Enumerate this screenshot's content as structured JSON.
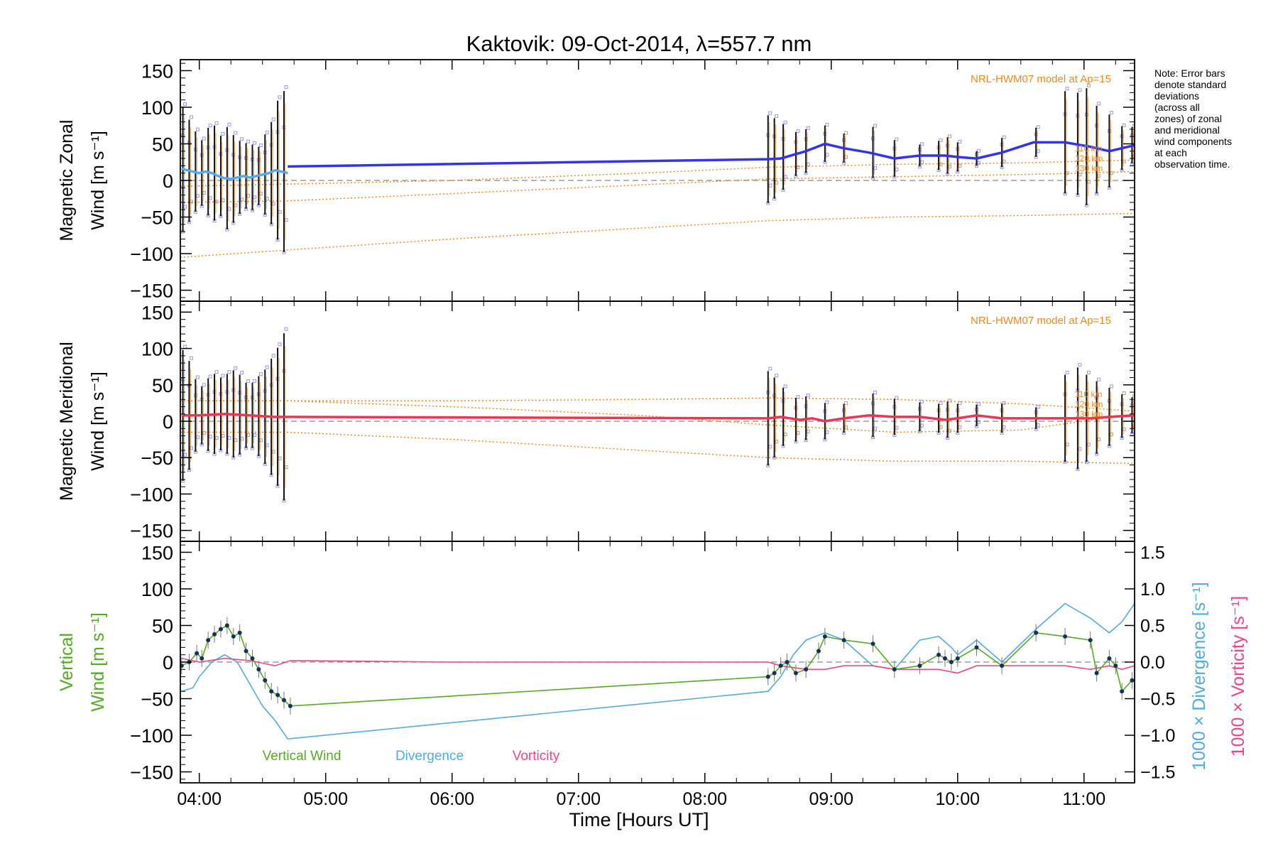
{
  "chart_data": {
    "title": "Kaktovik: 09-Oct-2014, λ=557.7 nm",
    "type": "line",
    "xlabel": "Time [Hours UT]",
    "xlim": [
      3.85,
      11.4
    ],
    "x_ticks": [
      {
        "value": 4,
        "label": "04:00"
      },
      {
        "value": 5,
        "label": "05:00"
      },
      {
        "value": 6,
        "label": "06:00"
      },
      {
        "value": 7,
        "label": "07:00"
      },
      {
        "value": 8,
        "label": "08:00"
      },
      {
        "value": 9,
        "label": "09:00"
      },
      {
        "value": 10,
        "label": "10:00"
      },
      {
        "value": 11,
        "label": "11:00"
      }
    ],
    "note": "Note: Error bars denote standard deviations (across all zones) of zonal and meridional wind components at each observation time.",
    "colors": {
      "zonal": "#3333ee",
      "zonal_light": "#55aaee",
      "meridional": "#ee3355",
      "vertical": "#55aa22",
      "divergence": "#55aadd",
      "vorticity": "#ee4488",
      "model": "#ee8822",
      "zone_points": "#9999dd"
    },
    "panels": [
      {
        "name": "zonal",
        "ylabel_line1": "Magnetic Zonal",
        "ylabel_line2": "Wind [m s⁻¹]",
        "ylim": [
          -165,
          165
        ],
        "yticks": [
          -150,
          -100,
          -50,
          0,
          50,
          100,
          150
        ],
        "model_label": "NRL-HWM07 model at Ap=15",
        "model_alt_labels": [
          "110 km",
          "120 km",
          "130 km"
        ],
        "series": [
          {
            "x": [
              3.86,
              3.9,
              3.95,
              4.0,
              4.05,
              4.1,
              4.15,
              4.2,
              4.25,
              4.3,
              4.35,
              4.4,
              4.45,
              4.5,
              4.55,
              4.6,
              4.65,
              4.7
            ],
            "y": [
              16,
              14,
              12,
              10,
              12,
              10,
              6,
              3,
              2,
              4,
              6,
              4,
              6,
              8,
              10,
              14,
              12,
              10
            ],
            "style": "light"
          },
          {
            "x": [
              4.7,
              8.5,
              8.6,
              8.8,
              8.95,
              9.1,
              9.3,
              9.5,
              9.7,
              9.9,
              10.0,
              10.15,
              10.35,
              10.6,
              10.85,
              11.05,
              11.2,
              11.4
            ],
            "y": [
              19,
              29,
              30,
              40,
              50,
              44,
              38,
              30,
              34,
              34,
              32,
              30,
              38,
              52,
              52,
              46,
              40,
              48
            ],
            "style": "main"
          }
        ],
        "errorbars": [
          {
            "x": 3.87,
            "y": 15,
            "e": 85
          },
          {
            "x": 3.92,
            "y": 13,
            "e": 70
          },
          {
            "x": 3.97,
            "y": 12,
            "e": 55
          },
          {
            "x": 4.02,
            "y": 10,
            "e": 45
          },
          {
            "x": 4.07,
            "y": 12,
            "e": 60
          },
          {
            "x": 4.12,
            "y": 10,
            "e": 65
          },
          {
            "x": 4.17,
            "y": 6,
            "e": 55
          },
          {
            "x": 4.22,
            "y": 3,
            "e": 70
          },
          {
            "x": 4.27,
            "y": 2,
            "e": 60
          },
          {
            "x": 4.32,
            "y": 4,
            "e": 50
          },
          {
            "x": 4.37,
            "y": 6,
            "e": 45
          },
          {
            "x": 4.42,
            "y": 4,
            "e": 45
          },
          {
            "x": 4.47,
            "y": 6,
            "e": 40
          },
          {
            "x": 4.52,
            "y": 8,
            "e": 55
          },
          {
            "x": 4.57,
            "y": 10,
            "e": 70
          },
          {
            "x": 4.62,
            "y": 14,
            "e": 95
          },
          {
            "x": 4.67,
            "y": 12,
            "e": 110
          },
          {
            "x": 8.5,
            "y": 29,
            "e": 60
          },
          {
            "x": 8.55,
            "y": 30,
            "e": 55
          },
          {
            "x": 8.62,
            "y": 32,
            "e": 45
          },
          {
            "x": 8.72,
            "y": 36,
            "e": 30
          },
          {
            "x": 8.8,
            "y": 40,
            "e": 30
          },
          {
            "x": 8.95,
            "y": 50,
            "e": 25
          },
          {
            "x": 9.1,
            "y": 44,
            "e": 20
          },
          {
            "x": 9.33,
            "y": 38,
            "e": 35
          },
          {
            "x": 9.5,
            "y": 30,
            "e": 25
          },
          {
            "x": 9.7,
            "y": 34,
            "e": 15
          },
          {
            "x": 9.85,
            "y": 34,
            "e": 20
          },
          {
            "x": 9.92,
            "y": 34,
            "e": 25
          },
          {
            "x": 10.0,
            "y": 32,
            "e": 20
          },
          {
            "x": 10.15,
            "y": 30,
            "e": 10
          },
          {
            "x": 10.35,
            "y": 38,
            "e": 20
          },
          {
            "x": 10.62,
            "y": 52,
            "e": 20
          },
          {
            "x": 10.85,
            "y": 52,
            "e": 70
          },
          {
            "x": 10.95,
            "y": 50,
            "e": 70
          },
          {
            "x": 11.02,
            "y": 46,
            "e": 80
          },
          {
            "x": 11.1,
            "y": 42,
            "e": 60
          },
          {
            "x": 11.2,
            "y": 40,
            "e": 50
          },
          {
            "x": 11.3,
            "y": 44,
            "e": 30
          },
          {
            "x": 11.38,
            "y": 48,
            "e": 25
          }
        ],
        "models": [
          {
            "x": [
              3.85,
              4.7,
              6.0,
              7.5,
              8.5,
              9.5,
              10.5,
              11.4
            ],
            "y": [
              -105,
              -95,
              -80,
              -65,
              -55,
              -50,
              -48,
              -45
            ]
          },
          {
            "x": [
              3.85,
              4.7,
              6.0,
              7.5,
              8.5,
              9.5,
              10.5,
              11.4
            ],
            "y": [
              -30,
              -28,
              -18,
              -6,
              2,
              5,
              8,
              12
            ]
          },
          {
            "x": [
              3.85,
              4.7,
              6.0,
              7.5,
              8.5,
              9.5,
              10.5,
              11.4
            ],
            "y": [
              -8,
              -5,
              0,
              10,
              18,
              22,
              24,
              28
            ]
          }
        ]
      },
      {
        "name": "meridional",
        "ylabel_line1": "Magnetic Meridional",
        "ylabel_line2": "Wind [m s⁻¹]",
        "ylim": [
          -165,
          165
        ],
        "yticks": [
          -150,
          -100,
          -50,
          0,
          50,
          100,
          150
        ],
        "model_label": "NRL-HWM07 model at Ap=15",
        "model_alt_labels": [
          "110 km",
          "120 km",
          "130 km"
        ],
        "series": [
          {
            "x": [
              3.86,
              4.0,
              4.2,
              4.4,
              4.6,
              4.7,
              8.5,
              8.6,
              8.75,
              8.85,
              8.95,
              9.1,
              9.3,
              9.5,
              9.7,
              9.9,
              10.0,
              10.15,
              10.35,
              10.6,
              10.85,
              11.05,
              11.2,
              11.4
            ],
            "y": [
              8,
              8,
              10,
              8,
              6,
              6,
              4,
              6,
              2,
              4,
              0,
              4,
              8,
              6,
              6,
              2,
              4,
              8,
              4,
              4,
              4,
              4,
              6,
              8
            ],
            "style": "main"
          }
        ],
        "errorbars": [
          {
            "x": 3.87,
            "y": 8,
            "e": 90
          },
          {
            "x": 3.92,
            "y": 8,
            "e": 75
          },
          {
            "x": 3.97,
            "y": 8,
            "e": 50
          },
          {
            "x": 4.02,
            "y": 8,
            "e": 40
          },
          {
            "x": 4.07,
            "y": 9,
            "e": 50
          },
          {
            "x": 4.12,
            "y": 10,
            "e": 55
          },
          {
            "x": 4.17,
            "y": 10,
            "e": 50
          },
          {
            "x": 4.22,
            "y": 10,
            "e": 55
          },
          {
            "x": 4.27,
            "y": 10,
            "e": 60
          },
          {
            "x": 4.32,
            "y": 9,
            "e": 55
          },
          {
            "x": 4.37,
            "y": 8,
            "e": 45
          },
          {
            "x": 4.42,
            "y": 8,
            "e": 45
          },
          {
            "x": 4.47,
            "y": 7,
            "e": 55
          },
          {
            "x": 4.52,
            "y": 6,
            "e": 65
          },
          {
            "x": 4.57,
            "y": 6,
            "e": 80
          },
          {
            "x": 4.62,
            "y": 6,
            "e": 95
          },
          {
            "x": 4.67,
            "y": 6,
            "e": 115
          },
          {
            "x": 8.5,
            "y": 4,
            "e": 65
          },
          {
            "x": 8.55,
            "y": 5,
            "e": 55
          },
          {
            "x": 8.62,
            "y": 6,
            "e": 40
          },
          {
            "x": 8.72,
            "y": 2,
            "e": 30
          },
          {
            "x": 8.8,
            "y": 4,
            "e": 30
          },
          {
            "x": 8.95,
            "y": 0,
            "e": 25
          },
          {
            "x": 9.1,
            "y": 4,
            "e": 20
          },
          {
            "x": 9.33,
            "y": 8,
            "e": 30
          },
          {
            "x": 9.5,
            "y": 6,
            "e": 25
          },
          {
            "x": 9.7,
            "y": 6,
            "e": 20
          },
          {
            "x": 9.85,
            "y": 4,
            "e": 20
          },
          {
            "x": 9.92,
            "y": 2,
            "e": 25
          },
          {
            "x": 10.0,
            "y": 4,
            "e": 20
          },
          {
            "x": 10.15,
            "y": 8,
            "e": 15
          },
          {
            "x": 10.35,
            "y": 4,
            "e": 20
          },
          {
            "x": 10.62,
            "y": 4,
            "e": 15
          },
          {
            "x": 10.85,
            "y": 4,
            "e": 60
          },
          {
            "x": 10.95,
            "y": 4,
            "e": 70
          },
          {
            "x": 11.02,
            "y": 4,
            "e": 60
          },
          {
            "x": 11.1,
            "y": 5,
            "e": 50
          },
          {
            "x": 11.2,
            "y": 6,
            "e": 40
          },
          {
            "x": 11.3,
            "y": 7,
            "e": 30
          },
          {
            "x": 11.38,
            "y": 8,
            "e": 25
          }
        ],
        "models": [
          {
            "x": [
              3.85,
              4.7,
              6.0,
              7.5,
              8.5,
              9.5,
              10.5,
              11.4
            ],
            "y": [
              28,
              28,
              20,
              8,
              -5,
              -15,
              -12,
              10
            ]
          },
          {
            "x": [
              3.85,
              4.7,
              6.0,
              7.5,
              8.5,
              9.5,
              10.5,
              11.4
            ],
            "y": [
              28,
              28,
              28,
              30,
              32,
              30,
              24,
              14
            ]
          },
          {
            "x": [
              3.85,
              4.7,
              6.0,
              7.5,
              8.5,
              9.5,
              10.5,
              11.4
            ],
            "y": [
              -15,
              -15,
              -25,
              -40,
              -50,
              -55,
              -55,
              -58
            ]
          }
        ]
      },
      {
        "name": "vertical",
        "ylabel_line1": "Vertical",
        "ylabel_line2": "Wind [m s⁻¹]",
        "ylim": [
          -165,
          165
        ],
        "yticks": [
          -150,
          -100,
          -50,
          0,
          50,
          100,
          150
        ],
        "right_axis": {
          "ylim": [
            -1.65,
            1.65
          ],
          "yticks": [
            -1.5,
            -1.0,
            -0.5,
            0.0,
            0.5,
            1.0,
            1.5
          ],
          "label_divergence": "1000 × Divergence [s⁻¹]",
          "label_vorticity": "1000 × Vorticity [s⁻¹]"
        },
        "legend": [
          "Vertical Wind",
          "Divergence",
          "Vorticity"
        ],
        "vertical_wind": {
          "x": [
            3.86,
            3.92,
            3.98,
            4.02,
            4.07,
            4.12,
            4.17,
            4.22,
            4.27,
            4.32,
            4.37,
            4.42,
            4.47,
            4.52,
            4.57,
            4.62,
            4.67,
            4.72,
            8.5,
            8.55,
            8.6,
            8.65,
            8.72,
            8.8,
            8.9,
            8.95,
            9.1,
            9.33,
            9.5,
            9.7,
            9.85,
            9.9,
            9.95,
            10.0,
            10.15,
            10.35,
            10.62,
            10.85,
            11.05,
            11.1,
            11.2,
            11.25,
            11.3,
            11.38
          ],
          "y": [
            -5,
            0,
            12,
            5,
            30,
            38,
            45,
            50,
            35,
            40,
            15,
            5,
            -10,
            -25,
            -40,
            -45,
            -52,
            -60,
            -20,
            -15,
            -5,
            0,
            -15,
            -10,
            15,
            35,
            30,
            25,
            -10,
            -5,
            10,
            5,
            0,
            5,
            20,
            -5,
            40,
            35,
            30,
            -15,
            5,
            -5,
            -40,
            -25
          ]
        },
        "divergence": {
          "x": [
            3.86,
            3.95,
            4.0,
            4.1,
            4.2,
            4.3,
            4.4,
            4.5,
            4.6,
            4.7,
            8.5,
            8.6,
            8.7,
            8.8,
            8.95,
            9.1,
            9.33,
            9.5,
            9.7,
            9.85,
            9.95,
            10.0,
            10.15,
            10.35,
            10.62,
            10.85,
            11.05,
            11.2,
            11.3,
            11.4
          ],
          "y": [
            -0.4,
            -0.35,
            -0.2,
            0.0,
            0.1,
            0.0,
            -0.3,
            -0.6,
            -0.8,
            -1.05,
            -0.4,
            -0.2,
            0.1,
            0.3,
            0.4,
            0.3,
            -0.05,
            -0.1,
            0.3,
            0.35,
            0.2,
            0.1,
            0.3,
            0.0,
            0.45,
            0.8,
            0.6,
            0.4,
            0.55,
            0.8
          ]
        },
        "vorticity": {
          "x": [
            3.86,
            4.0,
            4.2,
            4.4,
            4.6,
            4.72,
            6.0,
            7.5,
            8.5,
            8.6,
            8.8,
            8.95,
            9.1,
            9.33,
            9.5,
            9.7,
            9.85,
            10.0,
            10.15,
            10.35,
            10.62,
            10.85,
            11.05,
            11.2,
            11.3,
            11.4
          ],
          "y": [
            0.05,
            0.0,
            0.05,
            0.02,
            -0.05,
            0.02,
            0.0,
            0.0,
            0.0,
            -0.05,
            -0.1,
            -0.1,
            -0.05,
            -0.05,
            -0.1,
            -0.1,
            -0.1,
            -0.15,
            -0.05,
            -0.05,
            -0.05,
            -0.05,
            -0.1,
            -0.05,
            -0.1,
            -0.05
          ]
        }
      }
    ]
  }
}
